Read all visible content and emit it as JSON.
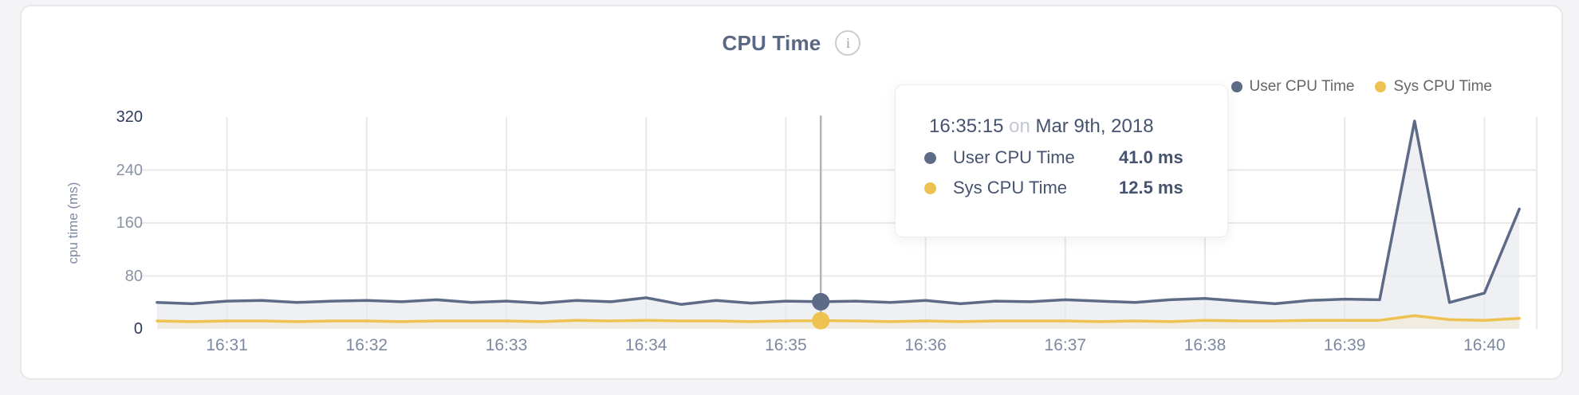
{
  "card": {
    "title": "CPU Time",
    "info_icon_glyph": "i"
  },
  "legend": {
    "items": [
      {
        "label": "User CPU Time",
        "color": "#5d6b87"
      },
      {
        "label": "Sys CPU Time",
        "color": "#eec250"
      }
    ]
  },
  "tooltip": {
    "time": "16:35:15",
    "connector": "on",
    "date": "Mar 9th, 2018",
    "rows": [
      {
        "label": "User CPU Time",
        "value": "41.0 ms",
        "color": "#5d6b87"
      },
      {
        "label": "Sys CPU Time",
        "value": "12.5 ms",
        "color": "#eec250"
      }
    ]
  },
  "chart_data": {
    "type": "area",
    "title": "CPU Time",
    "xlabel": "",
    "ylabel": "cpu time (ms)",
    "ylim": [
      0,
      320
    ],
    "grid": true,
    "legend_position": "top-right",
    "yticks": [
      {
        "label": "320",
        "value": 320,
        "emphasis": true,
        "gridline": false
      },
      {
        "label": "240",
        "value": 240,
        "emphasis": false,
        "gridline": true
      },
      {
        "label": "160",
        "value": 160,
        "emphasis": false,
        "gridline": true
      },
      {
        "label": "80",
        "value": 80,
        "emphasis": false,
        "gridline": true
      },
      {
        "label": "0",
        "value": 0,
        "emphasis": true,
        "gridline": false
      }
    ],
    "x": [
      "16:30:30",
      "16:30:45",
      "16:31:00",
      "16:31:15",
      "16:31:30",
      "16:31:45",
      "16:32:00",
      "16:32:15",
      "16:32:30",
      "16:32:45",
      "16:33:00",
      "16:33:15",
      "16:33:30",
      "16:33:45",
      "16:34:00",
      "16:34:15",
      "16:34:30",
      "16:34:45",
      "16:35:00",
      "16:35:15",
      "16:35:30",
      "16:35:45",
      "16:36:00",
      "16:36:15",
      "16:36:30",
      "16:36:45",
      "16:37:00",
      "16:37:15",
      "16:37:30",
      "16:37:45",
      "16:38:00",
      "16:38:15",
      "16:38:30",
      "16:38:45",
      "16:39:00",
      "16:39:15",
      "16:39:30",
      "16:39:45",
      "16:40:00",
      "16:40:15"
    ],
    "xtick_labels": [
      "16:31",
      "16:32",
      "16:33",
      "16:34",
      "16:35",
      "16:36",
      "16:37",
      "16:38",
      "16:39",
      "16:40"
    ],
    "series": [
      {
        "name": "User CPU Time",
        "color": "#5d6b87",
        "fill": "#eef0f4",
        "values": [
          40,
          38,
          42,
          43,
          40,
          42,
          43,
          41,
          44,
          40,
          42,
          39,
          43,
          41,
          47,
          37,
          43,
          39,
          42,
          41,
          42,
          40,
          43,
          38,
          42,
          41,
          44,
          42,
          40,
          44,
          46,
          42,
          38,
          43,
          45,
          44,
          314,
          40,
          54,
          181
        ]
      },
      {
        "name": "Sys CPU Time",
        "color": "#eec250",
        "fill": "#f0ecdf",
        "values": [
          12,
          11,
          12,
          12,
          11,
          12,
          12,
          11,
          12,
          12,
          12,
          11,
          13,
          12,
          13,
          12,
          12,
          11,
          12,
          12.5,
          12,
          11,
          12,
          11,
          12,
          12,
          12,
          11,
          12,
          11,
          13,
          12,
          12,
          13,
          13,
          13,
          20,
          14,
          13,
          16
        ]
      }
    ],
    "highlight_x": "16:35:15",
    "colors": {
      "gridline": "#e8e9ea",
      "crosshair": "#b4b4b6",
      "tick_label": "#8a93a4",
      "tick_label_emphasis": "#2c3c5e",
      "axis_title": "#7e89a0"
    }
  }
}
